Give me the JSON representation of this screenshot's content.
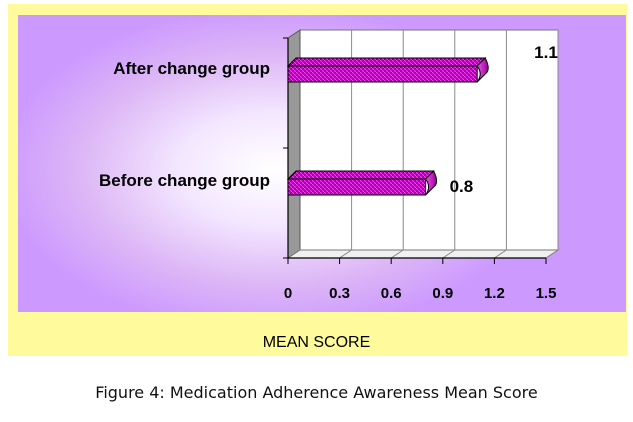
{
  "chart_data": {
    "type": "bar",
    "orientation": "horizontal",
    "categories": [
      "After change group",
      "Before change group"
    ],
    "values": [
      1.1,
      0.8
    ],
    "data_labels": [
      "1.1",
      "0.8"
    ],
    "xlabel": "MEAN SCORE",
    "ylabel": "",
    "xlim": [
      0,
      1.5
    ],
    "x_ticks": [
      "0",
      "0.3",
      "0.6",
      "0.9",
      "1.2",
      "1.5"
    ],
    "grid": "vertical",
    "style": "3d",
    "bar_color": "#cc00cc",
    "background_color": "#cc99ff",
    "frame_color": "#fffb9c"
  },
  "caption": "Figure 4: Medication Adherence Awareness Mean Score"
}
